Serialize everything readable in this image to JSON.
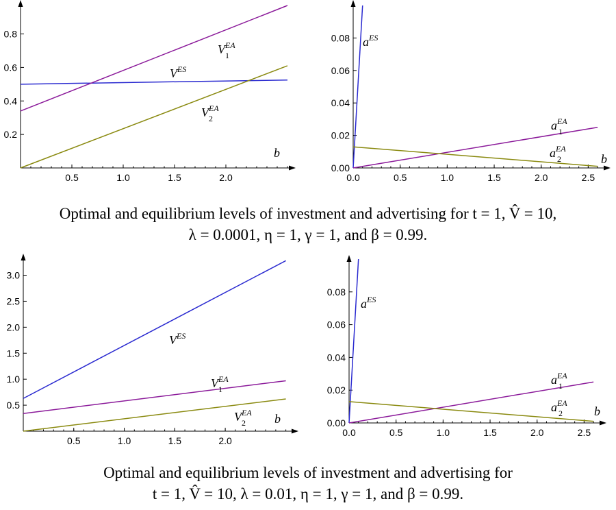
{
  "captions": [
    {
      "line1": "Optimal and equilibrium levels of investment and advertising for  t = 1,  V̂ = 10,",
      "line2": "λ = 0.0001,  η = 1,  γ = 1,  and  β = 0.99."
    },
    {
      "line1": "Optimal and equilibrium levels of investment and advertising for",
      "line2": "t = 1, V̂ = 10, λ = 0.01,  η = 1,  γ = 1,  and  β = 0.99."
    }
  ],
  "colors": {
    "ES": "#2a2ad0",
    "EA1": "#8b1a9a",
    "EA2": "#8a8a10"
  },
  "chart_data": [
    {
      "type": "line",
      "xlabel": "b",
      "xlim": [
        0,
        2.6
      ],
      "ylim": [
        0,
        0.97
      ],
      "xticks": [
        "0.5",
        "1.0",
        "1.5",
        "2.0"
      ],
      "yticks": [
        "0.2",
        "0.4",
        "0.6",
        "0.8"
      ],
      "series": [
        {
          "name": "V",
          "sup": "ES",
          "sub": "",
          "color": "#2a2ad0",
          "x": [
            0,
            2.6
          ],
          "y": [
            0.5,
            0.525
          ]
        },
        {
          "name": "V",
          "sup": "EA",
          "sub": "1",
          "color": "#8b1a9a",
          "x": [
            0,
            2.6
          ],
          "y": [
            0.34,
            0.97
          ]
        },
        {
          "name": "V",
          "sup": "EA",
          "sub": "2",
          "color": "#8a8a10",
          "x": [
            0,
            2.6
          ],
          "y": [
            0.0,
            0.61
          ]
        }
      ]
    },
    {
      "type": "line",
      "xlabel": "b",
      "xlim": [
        0,
        2.65
      ],
      "ylim": [
        0,
        0.1
      ],
      "xticks": [
        "0.0",
        "0.5",
        "1.0",
        "1.5",
        "2.0",
        "2.5"
      ],
      "yticks": [
        "0.00",
        "0.02",
        "0.04",
        "0.06",
        "0.08"
      ],
      "series": [
        {
          "name": "a",
          "sup": "ES",
          "sub": "",
          "color": "#2a2ad0",
          "x": [
            0,
            0.1
          ],
          "y": [
            0,
            0.1
          ]
        },
        {
          "name": "a",
          "sup": "EA",
          "sub": "1",
          "color": "#8b1a9a",
          "x": [
            0,
            2.6
          ],
          "y": [
            0,
            0.025
          ]
        },
        {
          "name": "a",
          "sup": "EA",
          "sub": "2",
          "color": "#8a8a10",
          "x": [
            0,
            2.6
          ],
          "y": [
            0.013,
            0.001
          ]
        }
      ]
    },
    {
      "type": "line",
      "xlabel": "b",
      "xlim": [
        0,
        2.65
      ],
      "ylim": [
        0,
        3.35
      ],
      "xticks": [
        "0.5",
        "1.0",
        "1.5",
        "2.0"
      ],
      "yticks": [
        "0.5",
        "1.0",
        "1.5",
        "2.0",
        "2.5",
        "3.0"
      ],
      "series": [
        {
          "name": "V",
          "sup": "ES",
          "sub": "",
          "color": "#2a2ad0",
          "x": [
            0,
            2.6
          ],
          "y": [
            0.63,
            3.28
          ]
        },
        {
          "name": "V",
          "sup": "EA",
          "sub": "1",
          "color": "#8b1a9a",
          "x": [
            0,
            2.6
          ],
          "y": [
            0.34,
            0.97
          ]
        },
        {
          "name": "V",
          "sup": "EA",
          "sub": "2",
          "color": "#8a8a10",
          "x": [
            0,
            2.6
          ],
          "y": [
            0.0,
            0.62
          ]
        }
      ]
    },
    {
      "type": "line",
      "xlabel": "b",
      "xlim": [
        0,
        2.65
      ],
      "ylim": [
        0,
        0.1
      ],
      "xticks": [
        "0.0",
        "0.5",
        "1.0",
        "1.5",
        "2.0",
        "2.5"
      ],
      "yticks": [
        "0.00",
        "0.02",
        "0.04",
        "0.06",
        "0.08"
      ],
      "series": [
        {
          "name": "a",
          "sup": "ES",
          "sub": "",
          "color": "#2a2ad0",
          "x": [
            0,
            0.1
          ],
          "y": [
            0,
            0.1
          ]
        },
        {
          "name": "a",
          "sup": "EA",
          "sub": "1",
          "color": "#8b1a9a",
          "x": [
            0,
            2.6
          ],
          "y": [
            0,
            0.025
          ]
        },
        {
          "name": "a",
          "sup": "EA",
          "sub": "2",
          "color": "#8a8a10",
          "x": [
            0,
            2.6
          ],
          "y": [
            0.013,
            0.001
          ]
        }
      ]
    }
  ]
}
